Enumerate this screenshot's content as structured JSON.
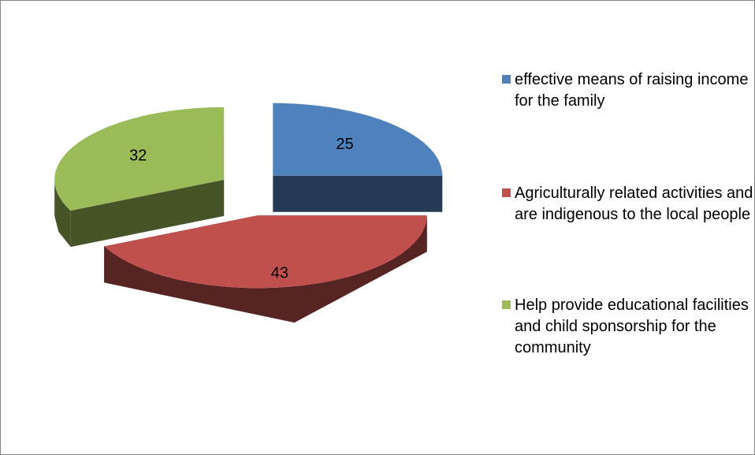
{
  "chart_data": {
    "type": "pie",
    "categories": [
      "effective means of raising income for the family",
      "Agriculturally related activities and are indigenous to the local people",
      "Help provide educational facilities and child sponsorship for the community"
    ],
    "values": [
      25,
      43,
      32
    ],
    "colors": [
      "#4f81bd",
      "#c0504d",
      "#9bbb59"
    ],
    "legend": "right"
  }
}
